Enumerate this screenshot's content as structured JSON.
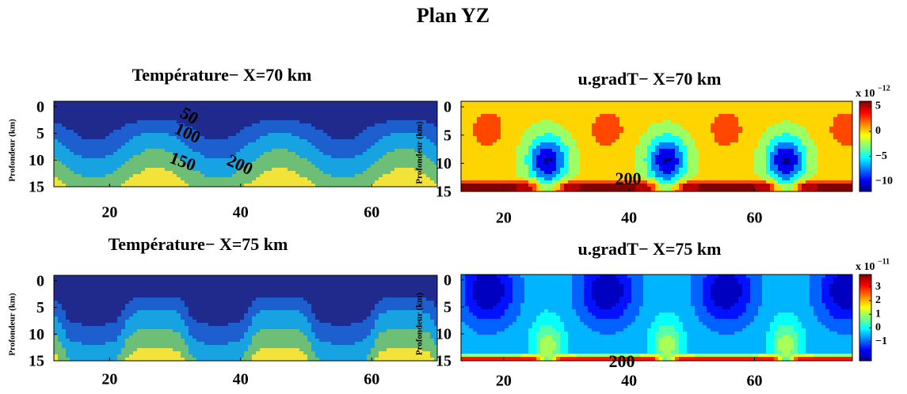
{
  "title": "Plan YZ",
  "chart_data": [
    {
      "type": "contour",
      "title": "Température− X=70 km",
      "ylabel": "Profondeur (km)",
      "xlim": [
        11.5,
        70
      ],
      "xticks": [
        20,
        40,
        60
      ],
      "ylim": [
        15,
        -1
      ],
      "yticks": [
        0,
        5,
        10,
        15
      ],
      "contour_labels": [
        50,
        100,
        150,
        200
      ]
    },
    {
      "type": "contour",
      "title": "u.gradT− X=70 km",
      "ylabel": "Profondeur (km)",
      "xlim": [
        13.2,
        75.6
      ],
      "xticks": [
        20,
        40,
        60
      ],
      "ylim": [
        15,
        -1
      ],
      "yticks": [
        0,
        5,
        10,
        15
      ],
      "contour_labels": [
        200
      ],
      "colorbar": {
        "lim": [
          -12,
          6
        ],
        "ticks": [
          5,
          0,
          {
            "value": -5,
            "label": "−5"
          },
          {
            "value": -10,
            "label": "−10"
          }
        ],
        "scale_base": "x 10",
        "scale_exponent": "−12"
      }
    },
    {
      "type": "contour",
      "title": "Température− X=75 km",
      "ylabel": "Profondeur (km)",
      "xlim": [
        11.5,
        70
      ],
      "xticks": [
        20,
        40,
        60
      ],
      "ylim": [
        15,
        -1
      ],
      "yticks": [
        0,
        5,
        10,
        15
      ],
      "contour_labels": []
    },
    {
      "type": "contour",
      "title": "u.gradT− X=75 km",
      "ylabel": "Profondeur (km)",
      "xlim": [
        13.2,
        75.6
      ],
      "xticks": [
        20,
        40,
        60
      ],
      "ylim": [
        15,
        -1
      ],
      "yticks": [
        0,
        5,
        10,
        15
      ],
      "contour_labels": [
        200
      ],
      "colorbar": {
        "lim": [
          -2.4,
          3.9
        ],
        "ticks": [
          3,
          2,
          1,
          0,
          {
            "value": -1,
            "label": "−1"
          }
        ],
        "scale_base": "x 10",
        "scale_exponent": "−11"
      }
    }
  ]
}
